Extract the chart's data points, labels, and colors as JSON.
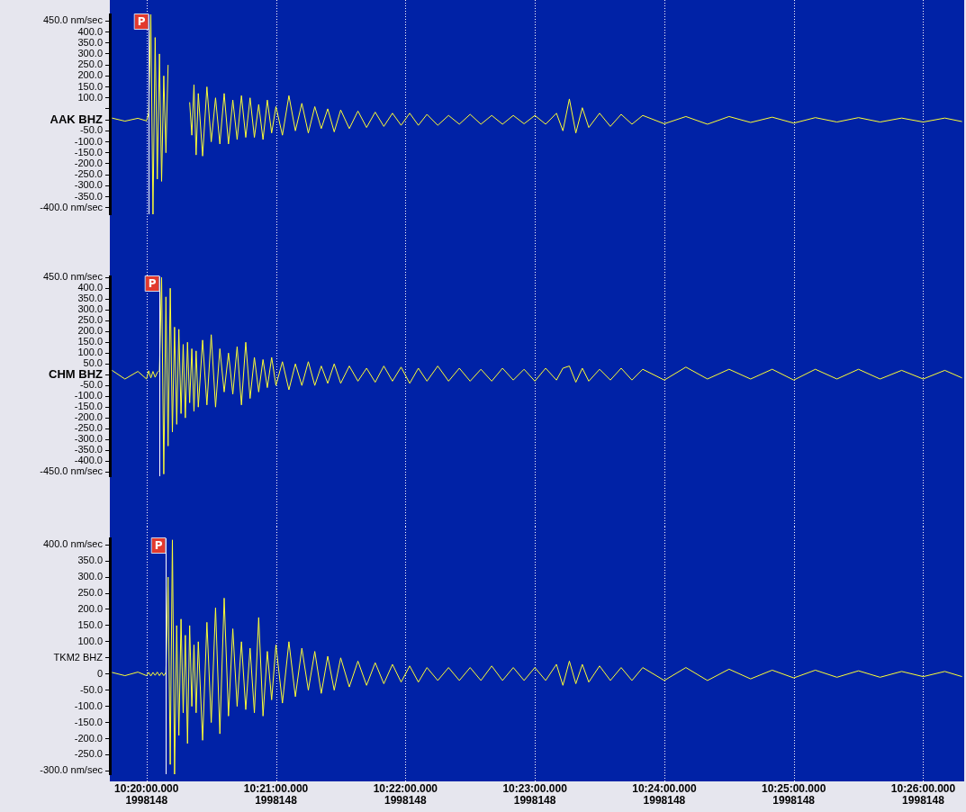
{
  "chart_data": [
    {
      "type": "line",
      "grid": "x",
      "tick_labels": "y",
      "x": [
        "1998-05-28T10:19:44",
        "1998-05-28T10:19:50",
        "1998-05-28T10:19:56",
        "1998-05-28T10:20:00",
        "1998-05-28T10:20:01",
        "1998-05-28T10:20:02",
        "1998-05-28T10:20:03",
        "1998-05-28T10:20:04",
        "1998-05-28T10:20:05",
        "1998-05-28T10:20:06",
        "1998-05-28T10:20:07",
        "1998-05-28T10:20:08",
        "1998-05-28T10:20:09",
        "1998-05-28T10:20:10",
        "1998-05-28T10:20:11",
        "1998-05-28T10:20:12",
        "1998-05-28T10:20:13",
        "1998-05-28T10:20:14",
        "1998-05-28T10:20:15",
        "1998-05-28T10:20:16",
        "1998-05-28T10:20:17",
        "1998-05-28T10:20:18",
        "1998-05-28T10:20:19",
        "1998-05-28T10:20:20",
        "1998-05-28T10:20:21",
        "1998-05-28T10:20:22",
        "1998-05-28T10:20:23",
        "1998-05-28T10:20:24",
        "1998-05-28T10:20:26",
        "1998-05-28T10:20:28",
        "1998-05-28T10:20:30",
        "1998-05-28T10:20:32",
        "1998-05-28T10:20:34",
        "1998-05-28T10:20:36",
        "1998-05-28T10:20:38",
        "1998-05-28T10:20:40",
        "1998-05-28T10:20:42",
        "1998-05-28T10:20:44",
        "1998-05-28T10:20:46",
        "1998-05-28T10:20:48",
        "1998-05-28T10:20:50",
        "1998-05-28T10:20:52",
        "1998-05-28T10:20:54",
        "1998-05-28T10:20:56",
        "1998-05-28T10:20:58",
        "1998-05-28T10:21:00",
        "1998-05-28T10:21:03",
        "1998-05-28T10:21:06",
        "1998-05-28T10:21:09",
        "1998-05-28T10:21:12",
        "1998-05-28T10:21:15",
        "1998-05-28T10:21:18",
        "1998-05-28T10:21:21",
        "1998-05-28T10:21:24",
        "1998-05-28T10:21:27",
        "1998-05-28T10:21:30",
        "1998-05-28T10:21:34",
        "1998-05-28T10:21:38",
        "1998-05-28T10:21:42",
        "1998-05-28T10:21:46",
        "1998-05-28T10:21:50",
        "1998-05-28T10:21:54",
        "1998-05-28T10:21:58",
        "1998-05-28T10:22:02",
        "1998-05-28T10:22:06",
        "1998-05-28T10:22:10",
        "1998-05-28T10:22:15",
        "1998-05-28T10:22:20",
        "1998-05-28T10:22:25",
        "1998-05-28T10:22:30",
        "1998-05-28T10:22:35",
        "1998-05-28T10:22:40",
        "1998-05-28T10:22:45",
        "1998-05-28T10:22:50",
        "1998-05-28T10:22:55",
        "1998-05-28T10:23:00",
        "1998-05-28T10:23:05",
        "1998-05-28T10:23:10",
        "1998-05-28T10:23:13",
        "1998-05-28T10:23:16",
        "1998-05-28T10:23:19",
        "1998-05-28T10:23:22",
        "1998-05-28T10:23:25",
        "1998-05-28T10:23:30",
        "1998-05-28T10:23:35",
        "1998-05-28T10:23:40",
        "1998-05-28T10:23:45",
        "1998-05-28T10:23:50",
        "1998-05-28T10:24:00",
        "1998-05-28T10:24:10",
        "1998-05-28T10:24:20",
        "1998-05-28T10:24:30",
        "1998-05-28T10:24:40",
        "1998-05-28T10:24:50",
        "1998-05-28T10:25:00",
        "1998-05-28T10:25:10",
        "1998-05-28T10:25:20",
        "1998-05-28T10:25:30",
        "1998-05-28T10:25:40",
        "1998-05-28T10:25:50",
        "1998-05-28T10:26:00",
        "1998-05-28T10:26:10",
        "1998-05-28T10:26:18"
      ],
      "series": [
        {
          "color": "#ffff33",
          "values": [
            8,
            -6,
            7,
            -5,
            30,
            480,
            -430,
            375,
            -270,
            300,
            -280,
            200,
            -150,
            250,
            null,
            null,
            null,
            null,
            null,
            null,
            null,
            null,
            null,
            80,
            -70,
            160,
            -160,
            120,
            -165,
            150,
            -100,
            100,
            -110,
            120,
            -110,
            90,
            -90,
            110,
            -80,
            100,
            -80,
            70,
            -90,
            90,
            -60,
            60,
            -70,
            110,
            -50,
            75,
            -60,
            60,
            -40,
            50,
            -55,
            45,
            -40,
            40,
            -35,
            35,
            -30,
            30,
            -25,
            30,
            -25,
            25,
            -25,
            20,
            -20,
            25,
            -20,
            20,
            -20,
            20,
            -18,
            20,
            -20,
            30,
            -50,
            95,
            -60,
            55,
            -35,
            30,
            -30,
            25,
            -20,
            20,
            -18,
            15,
            -20,
            15,
            -12,
            12,
            -15,
            10,
            -10,
            10,
            -10,
            8,
            -10,
            8,
            -8
          ]
        }
      ],
      "xlim": [
        "1998-05-28T10:19:43",
        "1998-05-28T10:26:19"
      ],
      "ylim": [
        -430,
        480
      ],
      "xticks": [
        {
          "value": "1998-05-28T10:20",
          "label": null
        },
        {
          "value": "1998-05-28T10:21",
          "label": null
        },
        {
          "value": "1998-05-28T10:22",
          "label": null
        },
        {
          "value": "1998-05-28T10:23",
          "label": null
        },
        {
          "value": "1998-05-28T10:24",
          "label": null
        },
        {
          "value": "1998-05-28T10:25",
          "label": null
        },
        {
          "value": "1998-05-28T10:26",
          "label": null
        }
      ],
      "yticks": [
        {
          "value": 450,
          "label": "450.0 nm/sec"
        },
        {
          "value": 400,
          "label": "400.0"
        },
        {
          "value": 350,
          "label": "350.0"
        },
        {
          "value": 300,
          "label": "300.0"
        },
        {
          "value": 250,
          "label": "250.0"
        },
        {
          "value": 200,
          "label": "200.0"
        },
        {
          "value": 150,
          "label": "150.0"
        },
        {
          "value": 100,
          "label": "100.0"
        },
        {
          "value": 50,
          "label": null
        },
        {
          "value": 0,
          "label": "AAK BHZ"
        },
        {
          "value": -50,
          "label": "-50.0"
        },
        {
          "value": -100,
          "label": "-100.0"
        },
        {
          "value": -150,
          "label": "-150.0"
        },
        {
          "value": -200,
          "label": "-200.0"
        },
        {
          "value": -250,
          "label": "-250.0"
        },
        {
          "value": -300,
          "label": "-300.0"
        },
        {
          "value": -350,
          "label": "-350.0"
        },
        {
          "value": -400,
          "label": "-400.0 nm/sec"
        }
      ],
      "ref_lines": [
        {
          "axis": "x",
          "value": "1998-05-28T10:20:01",
          "label": "P",
          "color": "#ffffff"
        }
      ]
    },
    {
      "type": "line",
      "grid": "x",
      "tick_labels": "y",
      "x": [
        "1998-05-28T10:19:44",
        "1998-05-28T10:19:50",
        "1998-05-28T10:19:56",
        "1998-05-28T10:20:00",
        "1998-05-28T10:20:01",
        "1998-05-28T10:20:02",
        "1998-05-28T10:20:03",
        "1998-05-28T10:20:04",
        "1998-05-28T10:20:05",
        "1998-05-28T10:20:06",
        "1998-05-28T10:20:07",
        "1998-05-28T10:20:08",
        "1998-05-28T10:20:09",
        "1998-05-28T10:20:10",
        "1998-05-28T10:20:11",
        "1998-05-28T10:20:12",
        "1998-05-28T10:20:13",
        "1998-05-28T10:20:14",
        "1998-05-28T10:20:15",
        "1998-05-28T10:20:16",
        "1998-05-28T10:20:17",
        "1998-05-28T10:20:18",
        "1998-05-28T10:20:19",
        "1998-05-28T10:20:20",
        "1998-05-28T10:20:21",
        "1998-05-28T10:20:22",
        "1998-05-28T10:20:23",
        "1998-05-28T10:20:24",
        "1998-05-28T10:20:26",
        "1998-05-28T10:20:28",
        "1998-05-28T10:20:30",
        "1998-05-28T10:20:32",
        "1998-05-28T10:20:34",
        "1998-05-28T10:20:36",
        "1998-05-28T10:20:38",
        "1998-05-28T10:20:40",
        "1998-05-28T10:20:42",
        "1998-05-28T10:20:44",
        "1998-05-28T10:20:46",
        "1998-05-28T10:20:48",
        "1998-05-28T10:20:50",
        "1998-05-28T10:20:52",
        "1998-05-28T10:20:54",
        "1998-05-28T10:20:56",
        "1998-05-28T10:20:58",
        "1998-05-28T10:21:00",
        "1998-05-28T10:21:03",
        "1998-05-28T10:21:06",
        "1998-05-28T10:21:09",
        "1998-05-28T10:21:12",
        "1998-05-28T10:21:15",
        "1998-05-28T10:21:18",
        "1998-05-28T10:21:21",
        "1998-05-28T10:21:24",
        "1998-05-28T10:21:27",
        "1998-05-28T10:21:30",
        "1998-05-28T10:21:34",
        "1998-05-28T10:21:38",
        "1998-05-28T10:21:42",
        "1998-05-28T10:21:46",
        "1998-05-28T10:21:50",
        "1998-05-28T10:21:54",
        "1998-05-28T10:21:58",
        "1998-05-28T10:22:02",
        "1998-05-28T10:22:06",
        "1998-05-28T10:22:10",
        "1998-05-28T10:22:15",
        "1998-05-28T10:22:20",
        "1998-05-28T10:22:25",
        "1998-05-28T10:22:30",
        "1998-05-28T10:22:35",
        "1998-05-28T10:22:40",
        "1998-05-28T10:22:45",
        "1998-05-28T10:22:50",
        "1998-05-28T10:22:55",
        "1998-05-28T10:23:00",
        "1998-05-28T10:23:05",
        "1998-05-28T10:23:10",
        "1998-05-28T10:23:13",
        "1998-05-28T10:23:16",
        "1998-05-28T10:23:19",
        "1998-05-28T10:23:22",
        "1998-05-28T10:23:25",
        "1998-05-28T10:23:30",
        "1998-05-28T10:23:35",
        "1998-05-28T10:23:40",
        "1998-05-28T10:23:45",
        "1998-05-28T10:23:50",
        "1998-05-28T10:24:00",
        "1998-05-28T10:24:10",
        "1998-05-28T10:24:20",
        "1998-05-28T10:24:30",
        "1998-05-28T10:24:40",
        "1998-05-28T10:24:50",
        "1998-05-28T10:25:00",
        "1998-05-28T10:25:10",
        "1998-05-28T10:25:20",
        "1998-05-28T10:25:30",
        "1998-05-28T10:25:40",
        "1998-05-28T10:25:50",
        "1998-05-28T10:26:00",
        "1998-05-28T10:26:10",
        "1998-05-28T10:26:18"
      ],
      "series": [
        {
          "color": "#ffff33",
          "values": [
            20,
            -20,
            15,
            -20,
            18,
            -15,
            15,
            -12,
            10,
            20,
            450,
            -460,
            360,
            -330,
            400,
            -265,
            220,
            -230,
            210,
            -180,
            140,
            -200,
            150,
            -130,
            120,
            -170,
            110,
            -150,
            160,
            -140,
            185,
            -150,
            120,
            -80,
            100,
            -90,
            130,
            -140,
            150,
            -110,
            80,
            -80,
            70,
            -60,
            80,
            -50,
            60,
            -70,
            50,
            -50,
            60,
            -50,
            40,
            -40,
            50,
            -40,
            40,
            -30,
            30,
            -35,
            40,
            -30,
            35,
            -40,
            30,
            -30,
            40,
            -30,
            30,
            -30,
            25,
            -30,
            30,
            -25,
            25,
            -30,
            30,
            -25,
            30,
            40,
            -35,
            30,
            -30,
            25,
            -25,
            30,
            -25,
            25,
            -25,
            35,
            -20,
            25,
            -20,
            25,
            -25,
            25,
            -20,
            25,
            -20,
            20,
            -20,
            20,
            -15
          ]
        }
      ],
      "xlim": [
        "1998-05-28T10:19:43",
        "1998-05-28T10:26:19"
      ],
      "ylim": [
        -470,
        455
      ],
      "xticks": [
        {
          "value": "1998-05-28T10:20",
          "label": null
        },
        {
          "value": "1998-05-28T10:21",
          "label": null
        },
        {
          "value": "1998-05-28T10:22",
          "label": null
        },
        {
          "value": "1998-05-28T10:23",
          "label": null
        },
        {
          "value": "1998-05-28T10:24",
          "label": null
        },
        {
          "value": "1998-05-28T10:25",
          "label": null
        },
        {
          "value": "1998-05-28T10:26",
          "label": null
        }
      ],
      "yticks": [
        {
          "value": 450,
          "label": "450.0 nm/sec"
        },
        {
          "value": 400,
          "label": "400.0"
        },
        {
          "value": 350,
          "label": "350.0"
        },
        {
          "value": 300,
          "label": "300.0"
        },
        {
          "value": 250,
          "label": "250.0"
        },
        {
          "value": 200,
          "label": "200.0"
        },
        {
          "value": 150,
          "label": "150.0"
        },
        {
          "value": 100,
          "label": "100.0"
        },
        {
          "value": 50,
          "label": "50.0"
        },
        {
          "value": 0,
          "label": "CHM BHZ"
        },
        {
          "value": -50,
          "label": "-50.0"
        },
        {
          "value": -100,
          "label": "-100.0"
        },
        {
          "value": -150,
          "label": "-150.0"
        },
        {
          "value": -200,
          "label": "-200.0"
        },
        {
          "value": -250,
          "label": "-250.0"
        },
        {
          "value": -300,
          "label": "-300.0"
        },
        {
          "value": -350,
          "label": "-350.0"
        },
        {
          "value": -400,
          "label": "-400.0"
        },
        {
          "value": -450,
          "label": "-450.0 nm/sec"
        }
      ],
      "ref_lines": [
        {
          "axis": "x",
          "value": "1998-05-28T10:20:06",
          "label": "P",
          "color": "#ffffff"
        }
      ]
    },
    {
      "type": "line",
      "grid": "x",
      "x": [
        "1998-05-28T10:19:44",
        "1998-05-28T10:19:50",
        "1998-05-28T10:19:56",
        "1998-05-28T10:20:00",
        "1998-05-28T10:20:01",
        "1998-05-28T10:20:02",
        "1998-05-28T10:20:03",
        "1998-05-28T10:20:04",
        "1998-05-28T10:20:05",
        "1998-05-28T10:20:06",
        "1998-05-28T10:20:07",
        "1998-05-28T10:20:08",
        "1998-05-28T10:20:09",
        "1998-05-28T10:20:10",
        "1998-05-28T10:20:11",
        "1998-05-28T10:20:12",
        "1998-05-28T10:20:13",
        "1998-05-28T10:20:14",
        "1998-05-28T10:20:15",
        "1998-05-28T10:20:16",
        "1998-05-28T10:20:17",
        "1998-05-28T10:20:18",
        "1998-05-28T10:20:19",
        "1998-05-28T10:20:20",
        "1998-05-28T10:20:21",
        "1998-05-28T10:20:22",
        "1998-05-28T10:20:23",
        "1998-05-28T10:20:24",
        "1998-05-28T10:20:26",
        "1998-05-28T10:20:28",
        "1998-05-28T10:20:30",
        "1998-05-28T10:20:32",
        "1998-05-28T10:20:34",
        "1998-05-28T10:20:36",
        "1998-05-28T10:20:38",
        "1998-05-28T10:20:40",
        "1998-05-28T10:20:42",
        "1998-05-28T10:20:44",
        "1998-05-28T10:20:46",
        "1998-05-28T10:20:48",
        "1998-05-28T10:20:50",
        "1998-05-28T10:20:52",
        "1998-05-28T10:20:54",
        "1998-05-28T10:20:56",
        "1998-05-28T10:20:58",
        "1998-05-28T10:21:00",
        "1998-05-28T10:21:03",
        "1998-05-28T10:21:06",
        "1998-05-28T10:21:09",
        "1998-05-28T10:21:12",
        "1998-05-28T10:21:15",
        "1998-05-28T10:21:18",
        "1998-05-28T10:21:21",
        "1998-05-28T10:21:24",
        "1998-05-28T10:21:27",
        "1998-05-28T10:21:30",
        "1998-05-28T10:21:34",
        "1998-05-28T10:21:38",
        "1998-05-28T10:21:42",
        "1998-05-28T10:21:46",
        "1998-05-28T10:21:50",
        "1998-05-28T10:21:54",
        "1998-05-28T10:21:58",
        "1998-05-28T10:22:02",
        "1998-05-28T10:22:06",
        "1998-05-28T10:22:10",
        "1998-05-28T10:22:15",
        "1998-05-28T10:22:20",
        "1998-05-28T10:22:25",
        "1998-05-28T10:22:30",
        "1998-05-28T10:22:35",
        "1998-05-28T10:22:40",
        "1998-05-28T10:22:45",
        "1998-05-28T10:22:50",
        "1998-05-28T10:22:55",
        "1998-05-28T10:23:00",
        "1998-05-28T10:23:05",
        "1998-05-28T10:23:10",
        "1998-05-28T10:23:13",
        "1998-05-28T10:23:16",
        "1998-05-28T10:23:19",
        "1998-05-28T10:23:22",
        "1998-05-28T10:23:25",
        "1998-05-28T10:23:30",
        "1998-05-28T10:23:35",
        "1998-05-28T10:23:40",
        "1998-05-28T10:23:45",
        "1998-05-28T10:23:50",
        "1998-05-28T10:24:00",
        "1998-05-28T10:24:10",
        "1998-05-28T10:24:20",
        "1998-05-28T10:24:30",
        "1998-05-28T10:24:40",
        "1998-05-28T10:24:50",
        "1998-05-28T10:25:00",
        "1998-05-28T10:25:10",
        "1998-05-28T10:25:20",
        "1998-05-28T10:25:30",
        "1998-05-28T10:25:40",
        "1998-05-28T10:25:50",
        "1998-05-28T10:26:00",
        "1998-05-28T10:26:10",
        "1998-05-28T10:26:18"
      ],
      "series": [
        {
          "color": "#ffff33",
          "values": [
            5,
            -5,
            6,
            -5,
            5,
            -6,
            5,
            -4,
            6,
            -5,
            5,
            -5,
            5,
            300,
            -280,
            415,
            -310,
            150,
            -190,
            170,
            -120,
            120,
            -215,
            150,
            -100,
            90,
            -120,
            100,
            -205,
            160,
            -150,
            205,
            -185,
            235,
            -130,
            140,
            -100,
            100,
            -110,
            80,
            -120,
            175,
            -130,
            70,
            -80,
            90,
            -90,
            100,
            -70,
            80,
            -50,
            70,
            -60,
            55,
            -50,
            50,
            -40,
            40,
            -35,
            35,
            -30,
            30,
            -25,
            25,
            -25,
            20,
            -20,
            20,
            -20,
            20,
            -20,
            25,
            -20,
            20,
            -20,
            20,
            -20,
            30,
            -35,
            40,
            -30,
            30,
            -25,
            25,
            -20,
            20,
            -20,
            20,
            -20,
            20,
            -20,
            15,
            -15,
            12,
            -12,
            12,
            -10,
            10,
            -10,
            8,
            -8,
            8,
            -8
          ]
        }
      ],
      "xlim": [
        "1998-05-28T10:19:43",
        "1998-05-28T10:26:19"
      ],
      "ylim": [
        -310,
        420
      ],
      "xticks": [
        {
          "value": "1998-05-28T10:20",
          "label": "10:20:00.000\n1998148"
        },
        {
          "value": "1998-05-28T10:21",
          "label": "10:21:00.000\n1998148"
        },
        {
          "value": "1998-05-28T10:22",
          "label": "10:22:00.000\n1998148"
        },
        {
          "value": "1998-05-28T10:23",
          "label": "10:23:00.000\n1998148"
        },
        {
          "value": "1998-05-28T10:24",
          "label": "10:24:00.000\n1998148"
        },
        {
          "value": "1998-05-28T10:25",
          "label": "10:25:00.000\n1998148"
        },
        {
          "value": "1998-05-28T10:26",
          "label": "10:26:00.000\n1998148"
        }
      ],
      "yticks": [
        {
          "value": 400,
          "label": "400.0 nm/sec"
        },
        {
          "value": 350,
          "label": "350.0"
        },
        {
          "value": 300,
          "label": "300.0"
        },
        {
          "value": 250,
          "label": "250.0"
        },
        {
          "value": 200,
          "label": "200.0"
        },
        {
          "value": 150,
          "label": "150.0"
        },
        {
          "value": 100,
          "label": "100.0"
        },
        {
          "value": 50,
          "label": "TKM2 BHZ"
        },
        0,
        {
          "value": -50,
          "label": "-50.0"
        },
        {
          "value": -100,
          "label": "-100.0"
        },
        {
          "value": -150,
          "label": "-150.0"
        },
        {
          "value": -200,
          "label": "-200.0"
        },
        {
          "value": -250,
          "label": "-250.0"
        },
        {
          "value": -300,
          "label": "-300.0 nm/sec"
        }
      ],
      "ref_lines": [
        {
          "axis": "x",
          "value": "1998-05-28T10:20:09",
          "label": "P",
          "color": "#ffffff"
        }
      ]
    }
  ]
}
